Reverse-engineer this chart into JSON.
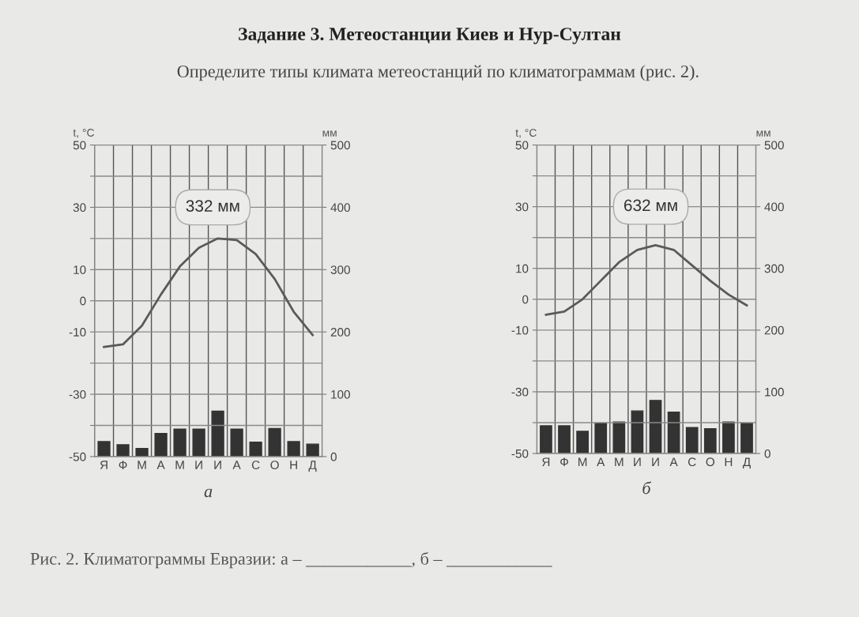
{
  "chart_data": [
    {
      "type": "bar",
      "title": "Задание 3. Метеостанции Киев и Нур-Султан",
      "subtitle": "Определите типы климата метеостанций по климатограммам (рис. 2).",
      "xlabel": "а",
      "ylabel": "t, °C",
      "y2label": "мм",
      "categories": [
        "Я",
        "Ф",
        "М",
        "А",
        "М",
        "И",
        "И",
        "А",
        "С",
        "О",
        "Н",
        "Д"
      ],
      "grid": true,
      "series": [
        {
          "axis": "y2",
          "color": "#333333",
          "values": [
            24,
            19,
            13,
            37,
            44,
            44,
            73,
            44,
            23,
            45,
            24,
            20
          ]
        },
        {
          "type": "line",
          "color": "#5a5a5a",
          "values": [
            -14.8,
            -14,
            -8,
            2,
            11,
            17,
            20,
            19.5,
            15,
            7,
            -3.5,
            -11
          ]
        }
      ],
      "ylim": [
        -50,
        50
      ],
      "yticks": [
        -50,
        {
          "value": -40,
          "label": null
        },
        -30,
        {
          "value": -20,
          "label": null
        },
        -10,
        0,
        10,
        {
          "value": 20,
          "label": null
        },
        30,
        {
          "value": 40,
          "label": null
        },
        50
      ],
      "y2lim": [
        0,
        500
      ],
      "y2ticks": [
        0,
        100,
        200,
        300,
        400,
        500
      ],
      "annotations": [
        "332 мм",
        "Рис. 2. Климатограммы Евразии: а – ____________, б – ____________"
      ]
    },
    {
      "type": "bar",
      "xlabel": "б",
      "ylabel": "t, °C",
      "y2label": "мм",
      "categories": [
        "Я",
        "Ф",
        "М",
        "А",
        "М",
        "И",
        "И",
        "А",
        "С",
        "О",
        "Н",
        "Д"
      ],
      "grid": true,
      "series": [
        {
          "axis": "y2",
          "color": "#333333",
          "values": [
            45,
            45,
            36,
            49,
            51,
            69,
            86,
            67,
            42,
            40,
            51,
            49
          ]
        },
        {
          "type": "line",
          "color": "#5a5a5a",
          "values": [
            -5,
            -4,
            0,
            6,
            12,
            16,
            17.5,
            16,
            11,
            6,
            1.5,
            -2
          ]
        }
      ],
      "ylim": [
        -50,
        50
      ],
      "yticks": [
        -50,
        {
          "value": -40,
          "label": null
        },
        -30,
        {
          "value": -20,
          "label": null
        },
        -10,
        0,
        10,
        {
          "value": 20,
          "label": null
        },
        30,
        {
          "value": 40,
          "label": null
        },
        50
      ],
      "y2lim": [
        0,
        500
      ],
      "y2ticks": [
        0,
        100,
        200,
        300,
        400,
        500
      ],
      "annotations": [
        "632 мм"
      ]
    }
  ]
}
